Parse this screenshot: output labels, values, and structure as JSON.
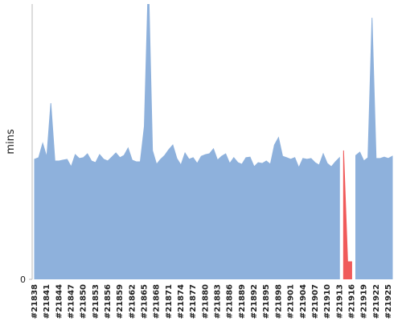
{
  "chart_data": {
    "type": "area",
    "y_label": "mins",
    "categories": [
      "#21838",
      null,
      null,
      "#21841",
      null,
      null,
      "#21844",
      null,
      null,
      "#21847",
      null,
      null,
      "#21850",
      null,
      null,
      "#21853",
      null,
      null,
      "#21856",
      null,
      null,
      "#21859",
      null,
      null,
      "#21862",
      null,
      null,
      "#21865",
      null,
      null,
      "#21868",
      null,
      null,
      "#21871",
      null,
      null,
      "#21874",
      null,
      null,
      "#21877",
      null,
      null,
      "#21880",
      null,
      null,
      "#21883",
      null,
      null,
      "#21886",
      null,
      null,
      "#21889",
      null,
      null,
      "#21892",
      null,
      null,
      "#21895",
      null,
      null,
      "#21898",
      null,
      null,
      "#21901",
      null,
      null,
      "#21904",
      null,
      null,
      "#21907",
      null,
      null,
      "#21910",
      null,
      null,
      "#21913",
      null,
      null,
      "#21916",
      null,
      null,
      "#21919",
      null,
      null,
      "#21922",
      null,
      null,
      "#21925",
      null
    ],
    "series": [
      {
        "color": "#8eb1dc",
        "values": [
          43.6,
          44.2,
          49.4,
          44.4,
          64.0,
          43.0,
          43.0,
          43.3,
          43.6,
          40.9,
          45.3,
          43.9,
          44.2,
          45.6,
          43.0,
          42.4,
          45.3,
          43.6,
          43.0,
          44.4,
          45.9,
          44.2,
          45.0,
          47.7,
          43.3,
          42.7,
          42.7,
          55.6,
          110,
          46.8,
          41.8,
          43.6,
          45.0,
          47.1,
          48.8,
          43.9,
          41.5,
          45.9,
          43.6,
          44.2,
          42.1,
          44.7,
          45.3,
          45.6,
          47.4,
          43.3,
          44.7,
          45.6,
          42.1,
          44.2,
          42.4,
          41.8,
          44.2,
          44.4,
          40.9,
          42.4,
          42.1,
          43.0,
          41.8,
          48.8,
          51.5,
          44.7,
          44.2,
          43.6,
          44.2,
          40.6,
          43.9,
          43.6,
          43.9,
          42.4,
          41.5,
          45.6,
          42.1,
          40.9,
          42.7,
          44.2,
          null,
          null,
          null,
          45.0,
          46.2,
          43.0,
          44.2,
          95.0,
          43.9,
          43.9,
          44.4,
          43.9,
          44.7
        ]
      },
      {
        "color": "#f05a5a",
        "values": [
          null,
          null,
          null,
          null,
          null,
          null,
          null,
          null,
          null,
          null,
          null,
          null,
          null,
          null,
          null,
          null,
          null,
          null,
          null,
          null,
          null,
          null,
          null,
          null,
          null,
          null,
          null,
          null,
          null,
          null,
          null,
          null,
          null,
          null,
          null,
          null,
          null,
          null,
          null,
          null,
          null,
          null,
          null,
          null,
          null,
          null,
          null,
          null,
          null,
          null,
          null,
          null,
          null,
          null,
          null,
          null,
          null,
          null,
          null,
          null,
          null,
          null,
          null,
          null,
          null,
          null,
          null,
          null,
          null,
          null,
          null,
          null,
          null,
          null,
          null,
          null,
          46.8,
          6.4,
          6.4,
          null,
          null,
          null,
          null,
          null,
          null,
          null,
          null,
          null,
          null
        ]
      }
    ],
    "ylim": [
      0,
      100
    ],
    "yticks": [
      0
    ]
  }
}
